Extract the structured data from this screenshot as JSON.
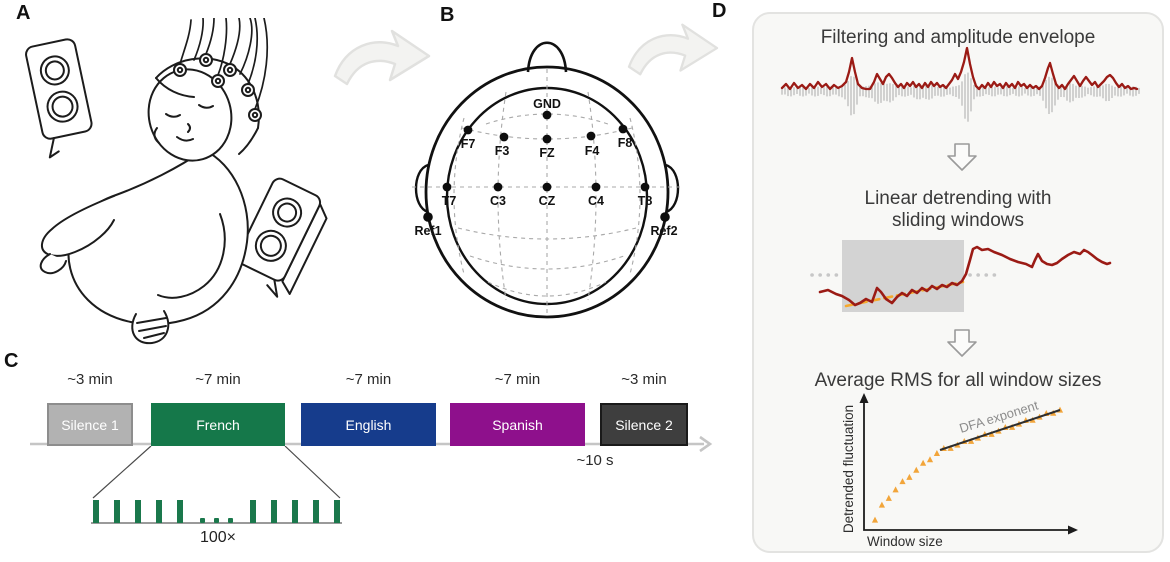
{
  "figure": {
    "panel_a": {
      "label": "A"
    },
    "panel_b": {
      "label": "B",
      "electrodes": [
        "GND",
        "F7",
        "F3",
        "FZ",
        "F4",
        "F8",
        "T7",
        "C3",
        "CZ",
        "C4",
        "T8",
        "Ref1",
        "Ref2"
      ]
    },
    "panel_c": {
      "label": "C",
      "blocks": [
        {
          "label": "Silence 1",
          "duration": "~3 min",
          "color": "#b2b2b2",
          "border": "#8d8d8d",
          "text": "#ffffff"
        },
        {
          "label": "French",
          "duration": "~7 min",
          "color": "#15784a",
          "border": "",
          "text": "#ffffff"
        },
        {
          "label": "English",
          "duration": "~7 min",
          "color": "#163c8c",
          "border": "",
          "text": "#ffffff"
        },
        {
          "label": "Spanish",
          "duration": "~7 min",
          "color": "#8e108c",
          "border": "",
          "text": "#ffffff"
        },
        {
          "label": "Silence 2",
          "duration": "~3 min",
          "color": "#3e3e3e",
          "border": "#1a1a1a",
          "text": "#ffffff"
        }
      ],
      "interval_label": "~10 s",
      "repeat_label": "100×"
    },
    "panel_d": {
      "label": "D",
      "step1_title": "Filtering and amplitude envelope",
      "step2_title_line1": "Linear detrending with",
      "step2_title_line2": "sliding windows",
      "step3_title": "Average RMS for all window sizes",
      "dfa_ylabel": "Detrended fluctuation",
      "dfa_xlabel": "Window size",
      "dfa_fit_label": "DFA exponent"
    },
    "colors": {
      "signal_red": "#9b1b15",
      "raw_gray": "#b7b7b7",
      "window_gray": "#d3d3d3",
      "trend_orange": "#f6a82b",
      "dfa_orange": "#f2a53a",
      "bar_green": "#1a784c",
      "timeline_gray": "#c5c5c5"
    }
  }
}
